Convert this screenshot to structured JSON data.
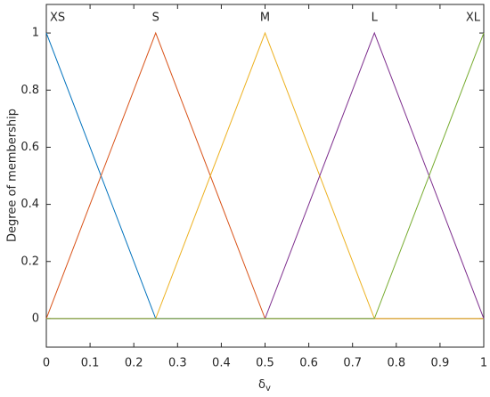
{
  "chart_data": {
    "type": "line",
    "ylabel": "Degree of membership",
    "xlabel": "δ",
    "xlabel_subscript": "v",
    "xlim": [
      0,
      1
    ],
    "ylim": [
      -0.1,
      1.1
    ],
    "xticks": [
      0,
      0.1,
      0.2,
      0.3,
      0.4,
      0.5,
      0.6,
      0.7,
      0.8,
      0.9,
      1
    ],
    "yticks": [
      0,
      0.2,
      0.4,
      0.6,
      0.8,
      1
    ],
    "series": [
      {
        "name": "XS",
        "color": "#0072bd",
        "x": [
          0,
          0.25,
          1
        ],
        "values": [
          1,
          0,
          0
        ]
      },
      {
        "name": "S",
        "color": "#d95319",
        "x": [
          0,
          0.25,
          0.5,
          1
        ],
        "values": [
          0,
          1,
          0,
          0
        ]
      },
      {
        "name": "M",
        "color": "#edb120",
        "x": [
          0,
          0.25,
          0.5,
          0.75,
          1
        ],
        "values": [
          0,
          0,
          1,
          0,
          0
        ]
      },
      {
        "name": "L",
        "color": "#7e2f8e",
        "x": [
          0,
          0.5,
          0.75,
          1
        ],
        "values": [
          0,
          0,
          1,
          0
        ]
      },
      {
        "name": "XL",
        "color": "#77ac30",
        "x": [
          0,
          0.75,
          1
        ],
        "values": [
          0,
          0,
          1
        ]
      }
    ]
  }
}
